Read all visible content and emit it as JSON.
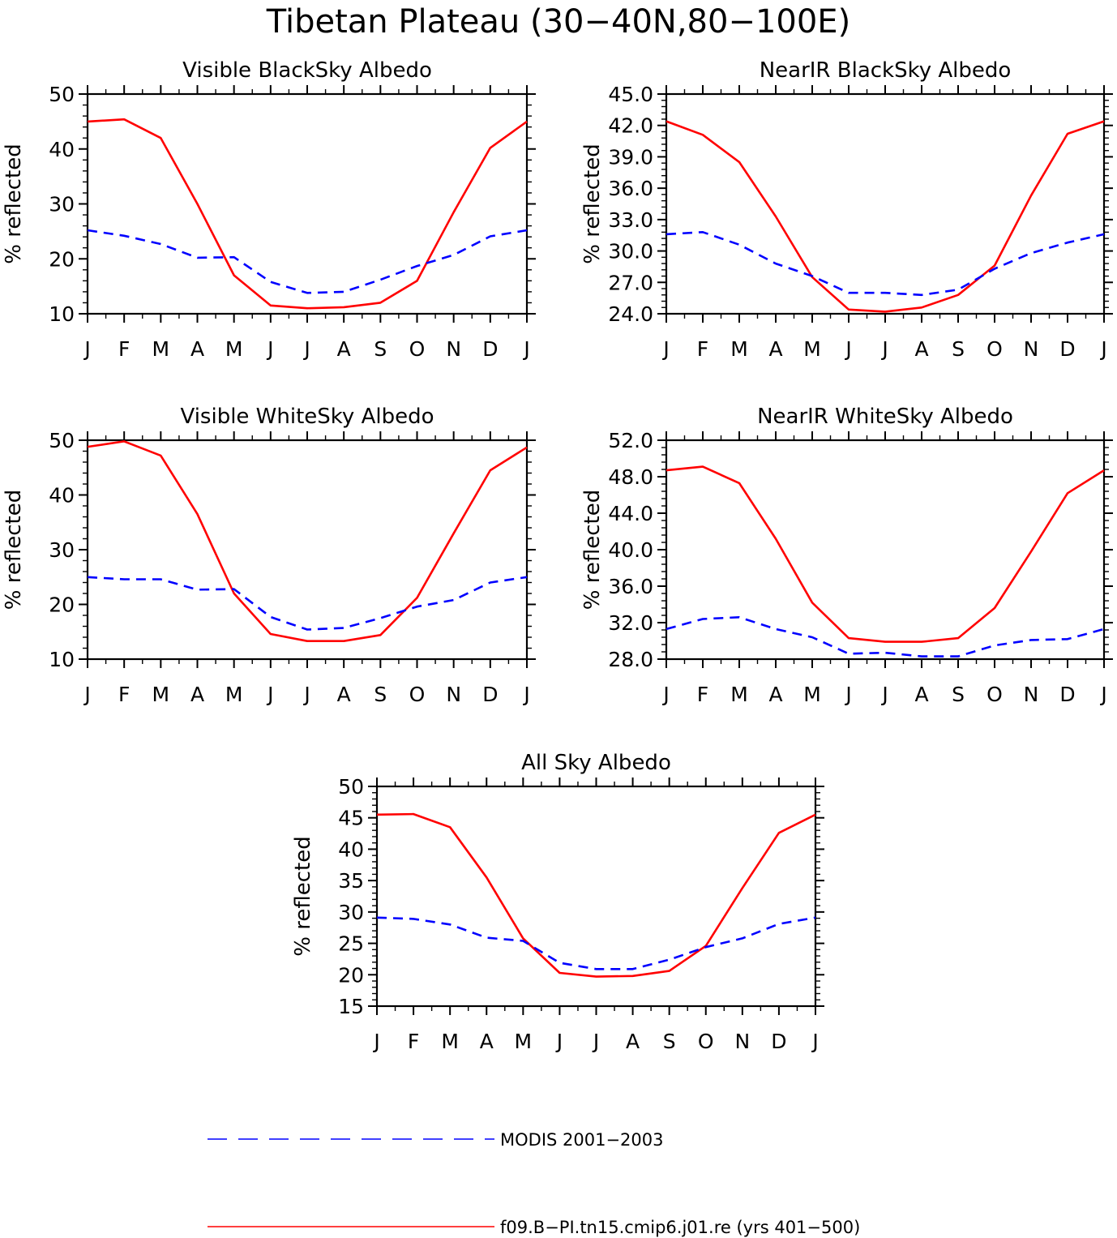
{
  "figure": {
    "title": "Tibetan Plateau (30−40N,80−100E)",
    "month_labels": [
      "J",
      "F",
      "M",
      "A",
      "M",
      "J",
      "J",
      "A",
      "S",
      "O",
      "N",
      "D",
      "J"
    ]
  },
  "legend": {
    "modis_label": "MODIS 2001−2003",
    "model_label": "f09.B−PI.tn15.cmip6.j01.re (yrs 401−500)",
    "modis_color": "#0000ff",
    "model_color": "#ff0000"
  },
  "chart_data": [
    {
      "type": "line",
      "title": "Visible BlackSky Albedo",
      "ylabel": "% reflected",
      "x": [
        "J",
        "F",
        "M",
        "A",
        "M",
        "J",
        "J",
        "A",
        "S",
        "O",
        "N",
        "D",
        "J"
      ],
      "ylim": [
        10,
        50
      ],
      "ytick_labels": [
        "10",
        "20",
        "30",
        "40",
        "50"
      ],
      "series": [
        {
          "name": "f09.B−PI.tn15.cmip6.j01.re (yrs 401−500)",
          "style": "solid",
          "color": "#ff0000",
          "values": [
            45.0,
            45.4,
            42.0,
            30.0,
            17.0,
            11.5,
            11.0,
            11.2,
            12.0,
            16.0,
            28.5,
            40.2,
            45.0
          ]
        },
        {
          "name": "MODIS 2001−2003",
          "style": "dashed",
          "color": "#0000ff",
          "values": [
            25.2,
            24.2,
            22.7,
            20.2,
            20.3,
            15.8,
            13.8,
            14.0,
            16.2,
            18.7,
            20.7,
            24.1,
            25.2
          ]
        }
      ]
    },
    {
      "type": "line",
      "title": "NearIR BlackSky Albedo",
      "ylabel": "% reflected",
      "x": [
        "J",
        "F",
        "M",
        "A",
        "M",
        "J",
        "J",
        "A",
        "S",
        "O",
        "N",
        "D",
        "J"
      ],
      "ylim": [
        24,
        45
      ],
      "ytick_labels": [
        "24.0",
        "27.0",
        "30.0",
        "33.0",
        "36.0",
        "39.0",
        "42.0",
        "45.0"
      ],
      "series": [
        {
          "name": "f09.B−PI.tn15.cmip6.j01.re (yrs 401−500)",
          "style": "solid",
          "color": "#ff0000",
          "values": [
            42.4,
            41.1,
            38.5,
            33.3,
            27.5,
            24.4,
            24.2,
            24.6,
            25.8,
            28.6,
            35.3,
            41.2,
            42.4
          ]
        },
        {
          "name": "MODIS 2001−2003",
          "style": "dashed",
          "color": "#0000ff",
          "values": [
            31.6,
            31.8,
            30.6,
            28.8,
            27.6,
            26.0,
            26.0,
            25.8,
            26.3,
            28.3,
            29.8,
            30.8,
            31.6
          ]
        }
      ]
    },
    {
      "type": "line",
      "title": "Visible WhiteSky Albedo",
      "ylabel": "% reflected",
      "x": [
        "J",
        "F",
        "M",
        "A",
        "M",
        "J",
        "J",
        "A",
        "S",
        "O",
        "N",
        "D",
        "J"
      ],
      "ylim": [
        10,
        50
      ],
      "ytick_labels": [
        "10",
        "20",
        "30",
        "40",
        "50"
      ],
      "series": [
        {
          "name": "f09.B−PI.tn15.cmip6.j01.re (yrs 401−500)",
          "style": "solid",
          "color": "#ff0000",
          "values": [
            48.8,
            49.8,
            47.2,
            36.5,
            22.0,
            14.6,
            13.3,
            13.3,
            14.4,
            21.2,
            33.0,
            44.5,
            48.7
          ]
        },
        {
          "name": "MODIS 2001−2003",
          "style": "dashed",
          "color": "#0000ff",
          "values": [
            25.0,
            24.6,
            24.6,
            22.7,
            22.8,
            17.7,
            15.4,
            15.7,
            17.5,
            19.6,
            20.8,
            24.0,
            25.0
          ]
        }
      ]
    },
    {
      "type": "line",
      "title": "NearIR WhiteSky Albedo",
      "ylabel": "% reflected",
      "x": [
        "J",
        "F",
        "M",
        "A",
        "M",
        "J",
        "J",
        "A",
        "S",
        "O",
        "N",
        "D",
        "J"
      ],
      "ylim": [
        28,
        52
      ],
      "ytick_labels": [
        "28.0",
        "32.0",
        "36.0",
        "40.0",
        "44.0",
        "48.0",
        "52.0"
      ],
      "series": [
        {
          "name": "f09.B−PI.tn15.cmip6.j01.re (yrs 401−500)",
          "style": "solid",
          "color": "#ff0000",
          "values": [
            48.7,
            49.1,
            47.3,
            41.2,
            34.2,
            30.3,
            29.9,
            29.9,
            30.3,
            33.6,
            39.8,
            46.2,
            48.7
          ]
        },
        {
          "name": "MODIS 2001−2003",
          "style": "dashed",
          "color": "#0000ff",
          "values": [
            31.3,
            32.4,
            32.6,
            31.3,
            30.4,
            28.6,
            28.7,
            28.3,
            28.3,
            29.5,
            30.1,
            30.2,
            31.3
          ]
        }
      ]
    },
    {
      "type": "line",
      "title": "All Sky Albedo",
      "ylabel": "% reflected",
      "x": [
        "J",
        "F",
        "M",
        "A",
        "M",
        "J",
        "J",
        "A",
        "S",
        "O",
        "N",
        "D",
        "J"
      ],
      "ylim": [
        15,
        50
      ],
      "ytick_labels": [
        "15",
        "20",
        "25",
        "30",
        "35",
        "40",
        "45",
        "50"
      ],
      "series": [
        {
          "name": "f09.B−PI.tn15.cmip6.j01.re (yrs 401−500)",
          "style": "solid",
          "color": "#ff0000",
          "values": [
            45.5,
            45.6,
            43.5,
            35.5,
            25.8,
            20.3,
            19.7,
            19.8,
            20.6,
            24.6,
            33.8,
            42.6,
            45.5
          ]
        },
        {
          "name": "MODIS 2001−2003",
          "style": "dashed",
          "color": "#0000ff",
          "values": [
            29.1,
            28.9,
            28.0,
            25.9,
            25.4,
            21.9,
            20.9,
            20.9,
            22.4,
            24.4,
            25.8,
            28.1,
            29.1
          ]
        }
      ]
    }
  ]
}
